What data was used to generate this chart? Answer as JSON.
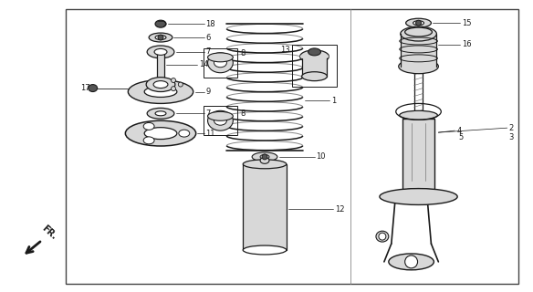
{
  "bg_color": "#ffffff",
  "line_color": "#1a1a1a",
  "gray_fill": "#aaaaaa",
  "light_gray": "#d8d8d8",
  "dark_gray": "#555555",
  "border_color": "#333333",
  "fig_width": 5.84,
  "fig_height": 3.2,
  "dpi": 100,
  "fr_text": "FR."
}
